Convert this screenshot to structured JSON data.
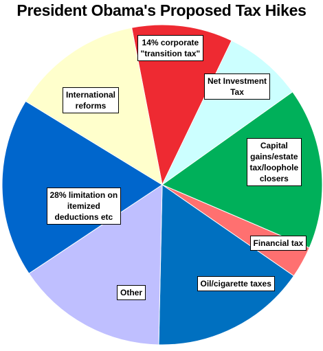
{
  "chart_data": {
    "type": "pie",
    "title": "President Obama's Proposed Tax Hikes",
    "slices": [
      {
        "label": "14% corporate\n\"transition tax\"",
        "value": 10.2,
        "color": "#EE2A32"
      },
      {
        "label": "Net Investment\nTax",
        "value": 8.0,
        "color": "#CCFFFF"
      },
      {
        "label": "Capital\ngains/estate\ntax/loophole\nclosers",
        "value": 16.3,
        "color": "#00B05A"
      },
      {
        "label": "Financial tax",
        "value": 3.2,
        "color": "#FF7070"
      },
      {
        "label": "Oil/cigarette taxes",
        "value": 15.7,
        "color": "#0070C0"
      },
      {
        "label": "Other",
        "value": 15.3,
        "color": "#BFBFFF"
      },
      {
        "label": "28% limitation on\nitemized\ndeductions etc",
        "value": 18.1,
        "color": "#0066CC"
      },
      {
        "label": "International\nreforms",
        "value": 13.2,
        "color": "#FFFFCC"
      }
    ],
    "start_angle_deg": -11,
    "direction": "clockwise",
    "legend": "none"
  }
}
